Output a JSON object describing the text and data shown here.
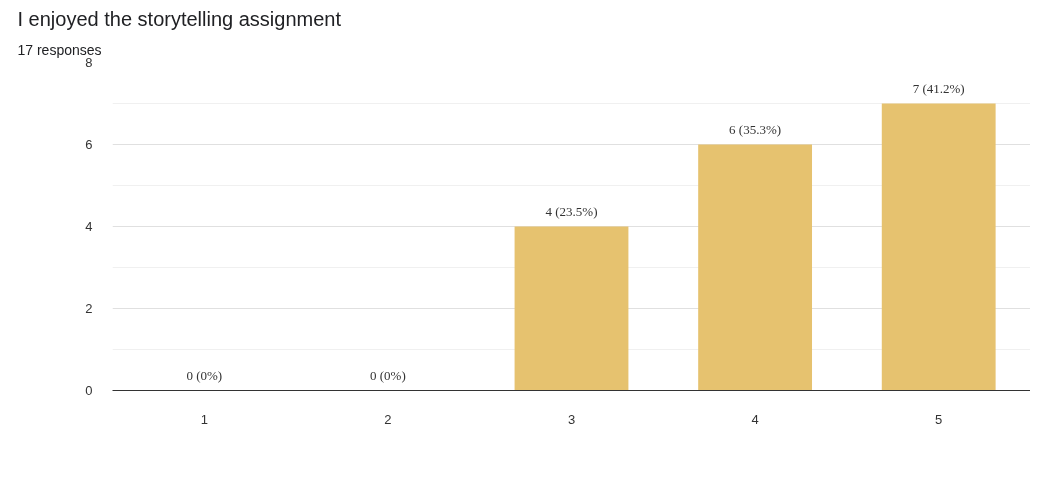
{
  "chart_data": {
    "type": "bar",
    "title": "I enjoyed the storytelling assignment",
    "subtitle": "17 responses",
    "categories": [
      "1",
      "2",
      "3",
      "4",
      "5"
    ],
    "values": [
      0,
      0,
      4,
      6,
      7
    ],
    "value_labels": [
      "0 (0%)",
      "0 (0%)",
      "4 (23.5%)",
      "6 (35.3%)",
      "7 (41.2%)"
    ],
    "color": "#e6c26f",
    "ylim": [
      0,
      8
    ],
    "yticks": [
      0,
      2,
      4,
      6,
      8
    ],
    "grid": "y"
  }
}
